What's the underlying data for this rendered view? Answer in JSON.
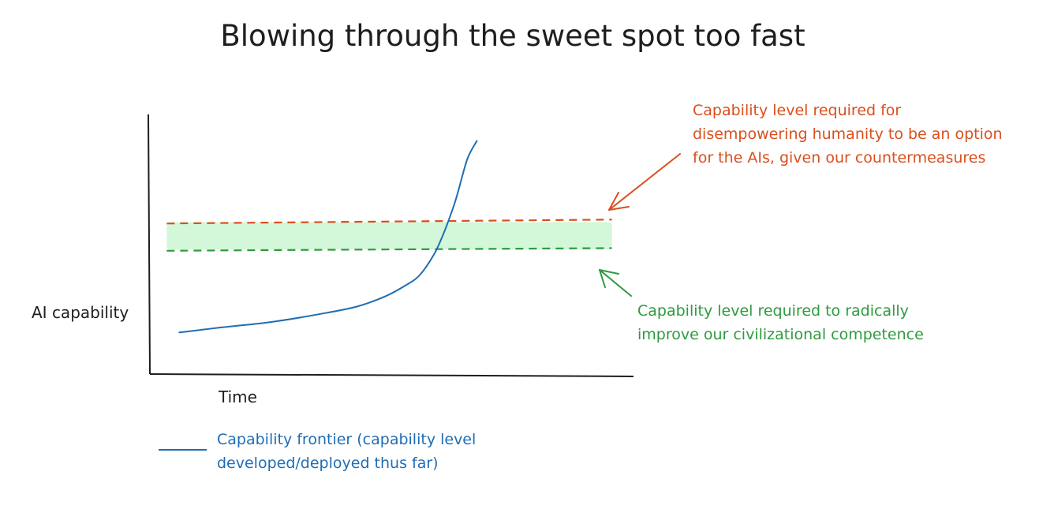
{
  "chart_data": {
    "type": "line",
    "title": "Blowing through the sweet spot too fast",
    "ylabel": "AI capability",
    "xlabel": "Time",
    "xlim": [
      0,
      10
    ],
    "ylim": [
      0,
      10
    ],
    "grid": false,
    "legend_position": "bottom-left",
    "series": [
      {
        "name": "Capability frontier (capability level developed/deployed thus far)",
        "color": "#1f6db5",
        "x": [
          0.6,
          1.5,
          2.5,
          3.5,
          4.3,
          4.9,
          5.3,
          5.6,
          5.9,
          6.1,
          6.3,
          6.4,
          6.6,
          6.8
        ],
        "y": [
          1.6,
          1.8,
          2.0,
          2.3,
          2.6,
          3.0,
          3.4,
          3.8,
          4.6,
          5.4,
          6.4,
          7.0,
          8.3,
          9.0
        ]
      }
    ],
    "reference_lines": [
      {
        "label_lines": [
          "Capability level required for",
          "disempowering humanity to be an option",
          "for the AIs, given our countermeasures"
        ],
        "color": "#d9501d",
        "y_start": 5.8,
        "y_end": 5.95
      },
      {
        "label_lines": [
          "Capability level required to radically",
          "improve our civilizational competence"
        ],
        "color": "#2e9a3e",
        "y_start": 4.75,
        "y_end": 4.85
      }
    ],
    "band": {
      "y_from": 4.8,
      "y_to": 5.85,
      "color": "#d3f7d9"
    },
    "legend_lines": [
      "Capability frontier (capability level",
      "developed/deployed thus far)"
    ]
  }
}
